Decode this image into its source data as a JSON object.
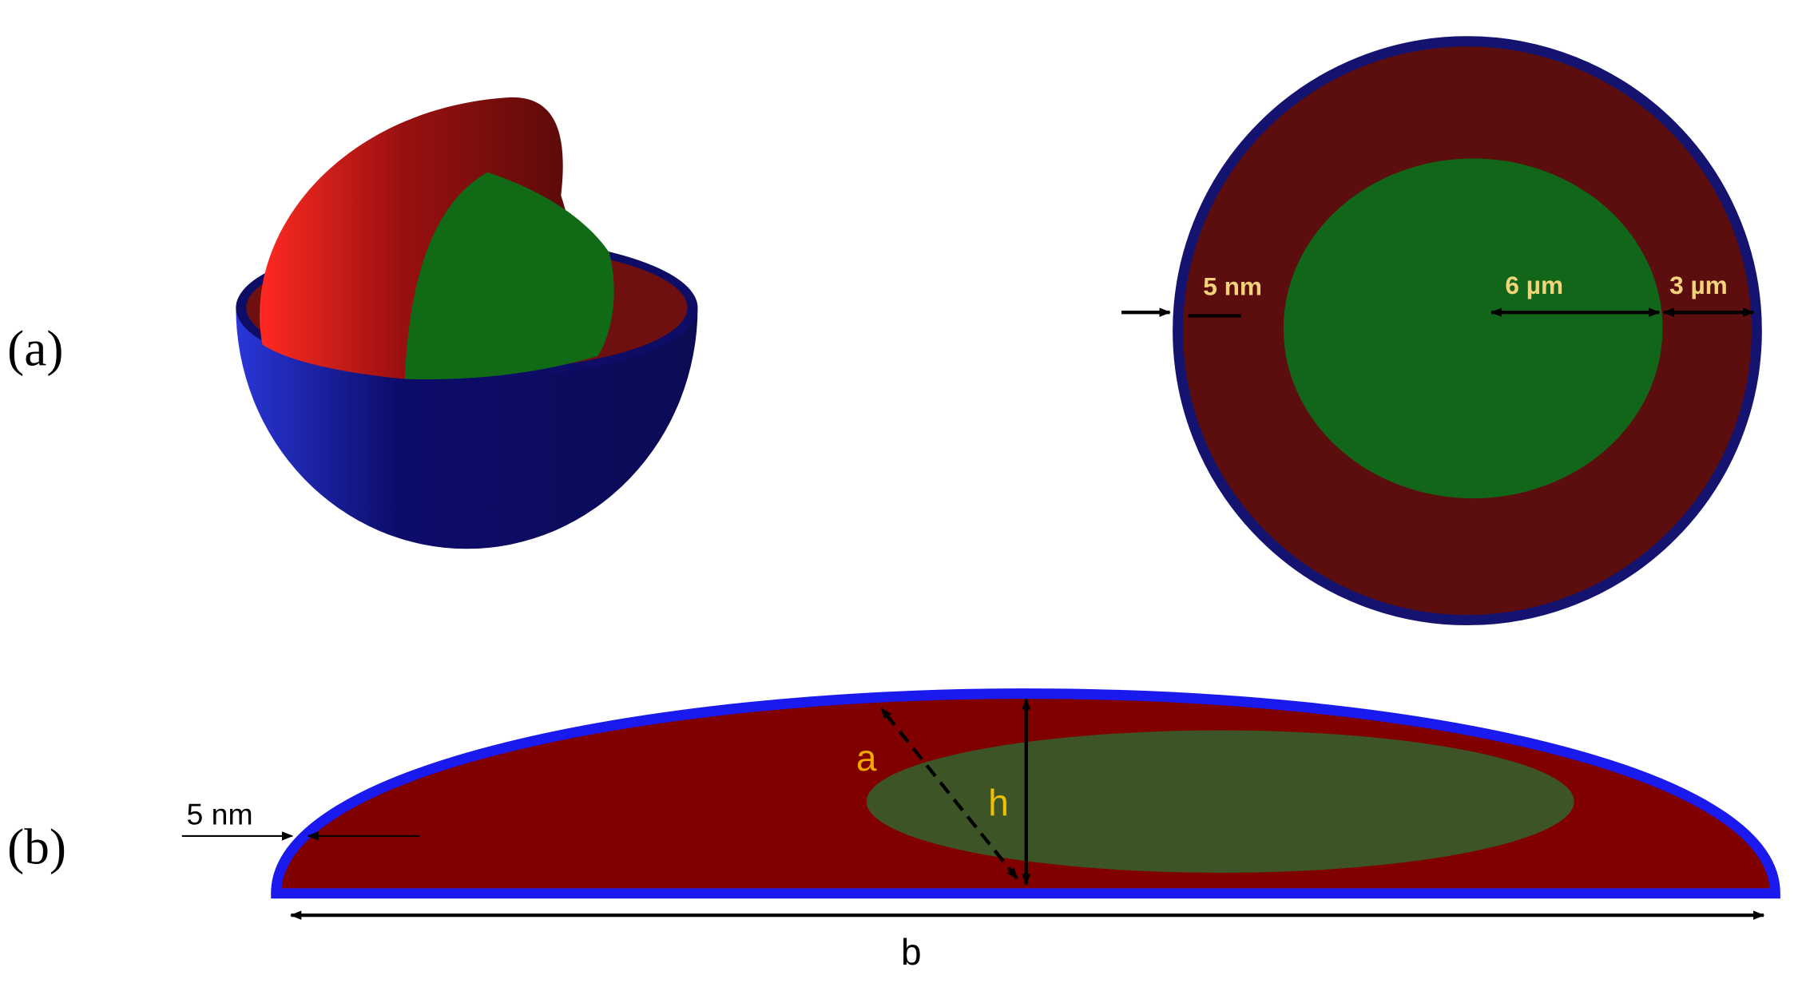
{
  "panels": [
    {
      "label": "(a)",
      "annotations": [
        "5 nm",
        "6 µm",
        "3 µm"
      ]
    },
    {
      "label": "(b)",
      "annotations": [
        "5 nm",
        "a",
        "h",
        "b"
      ]
    }
  ]
}
